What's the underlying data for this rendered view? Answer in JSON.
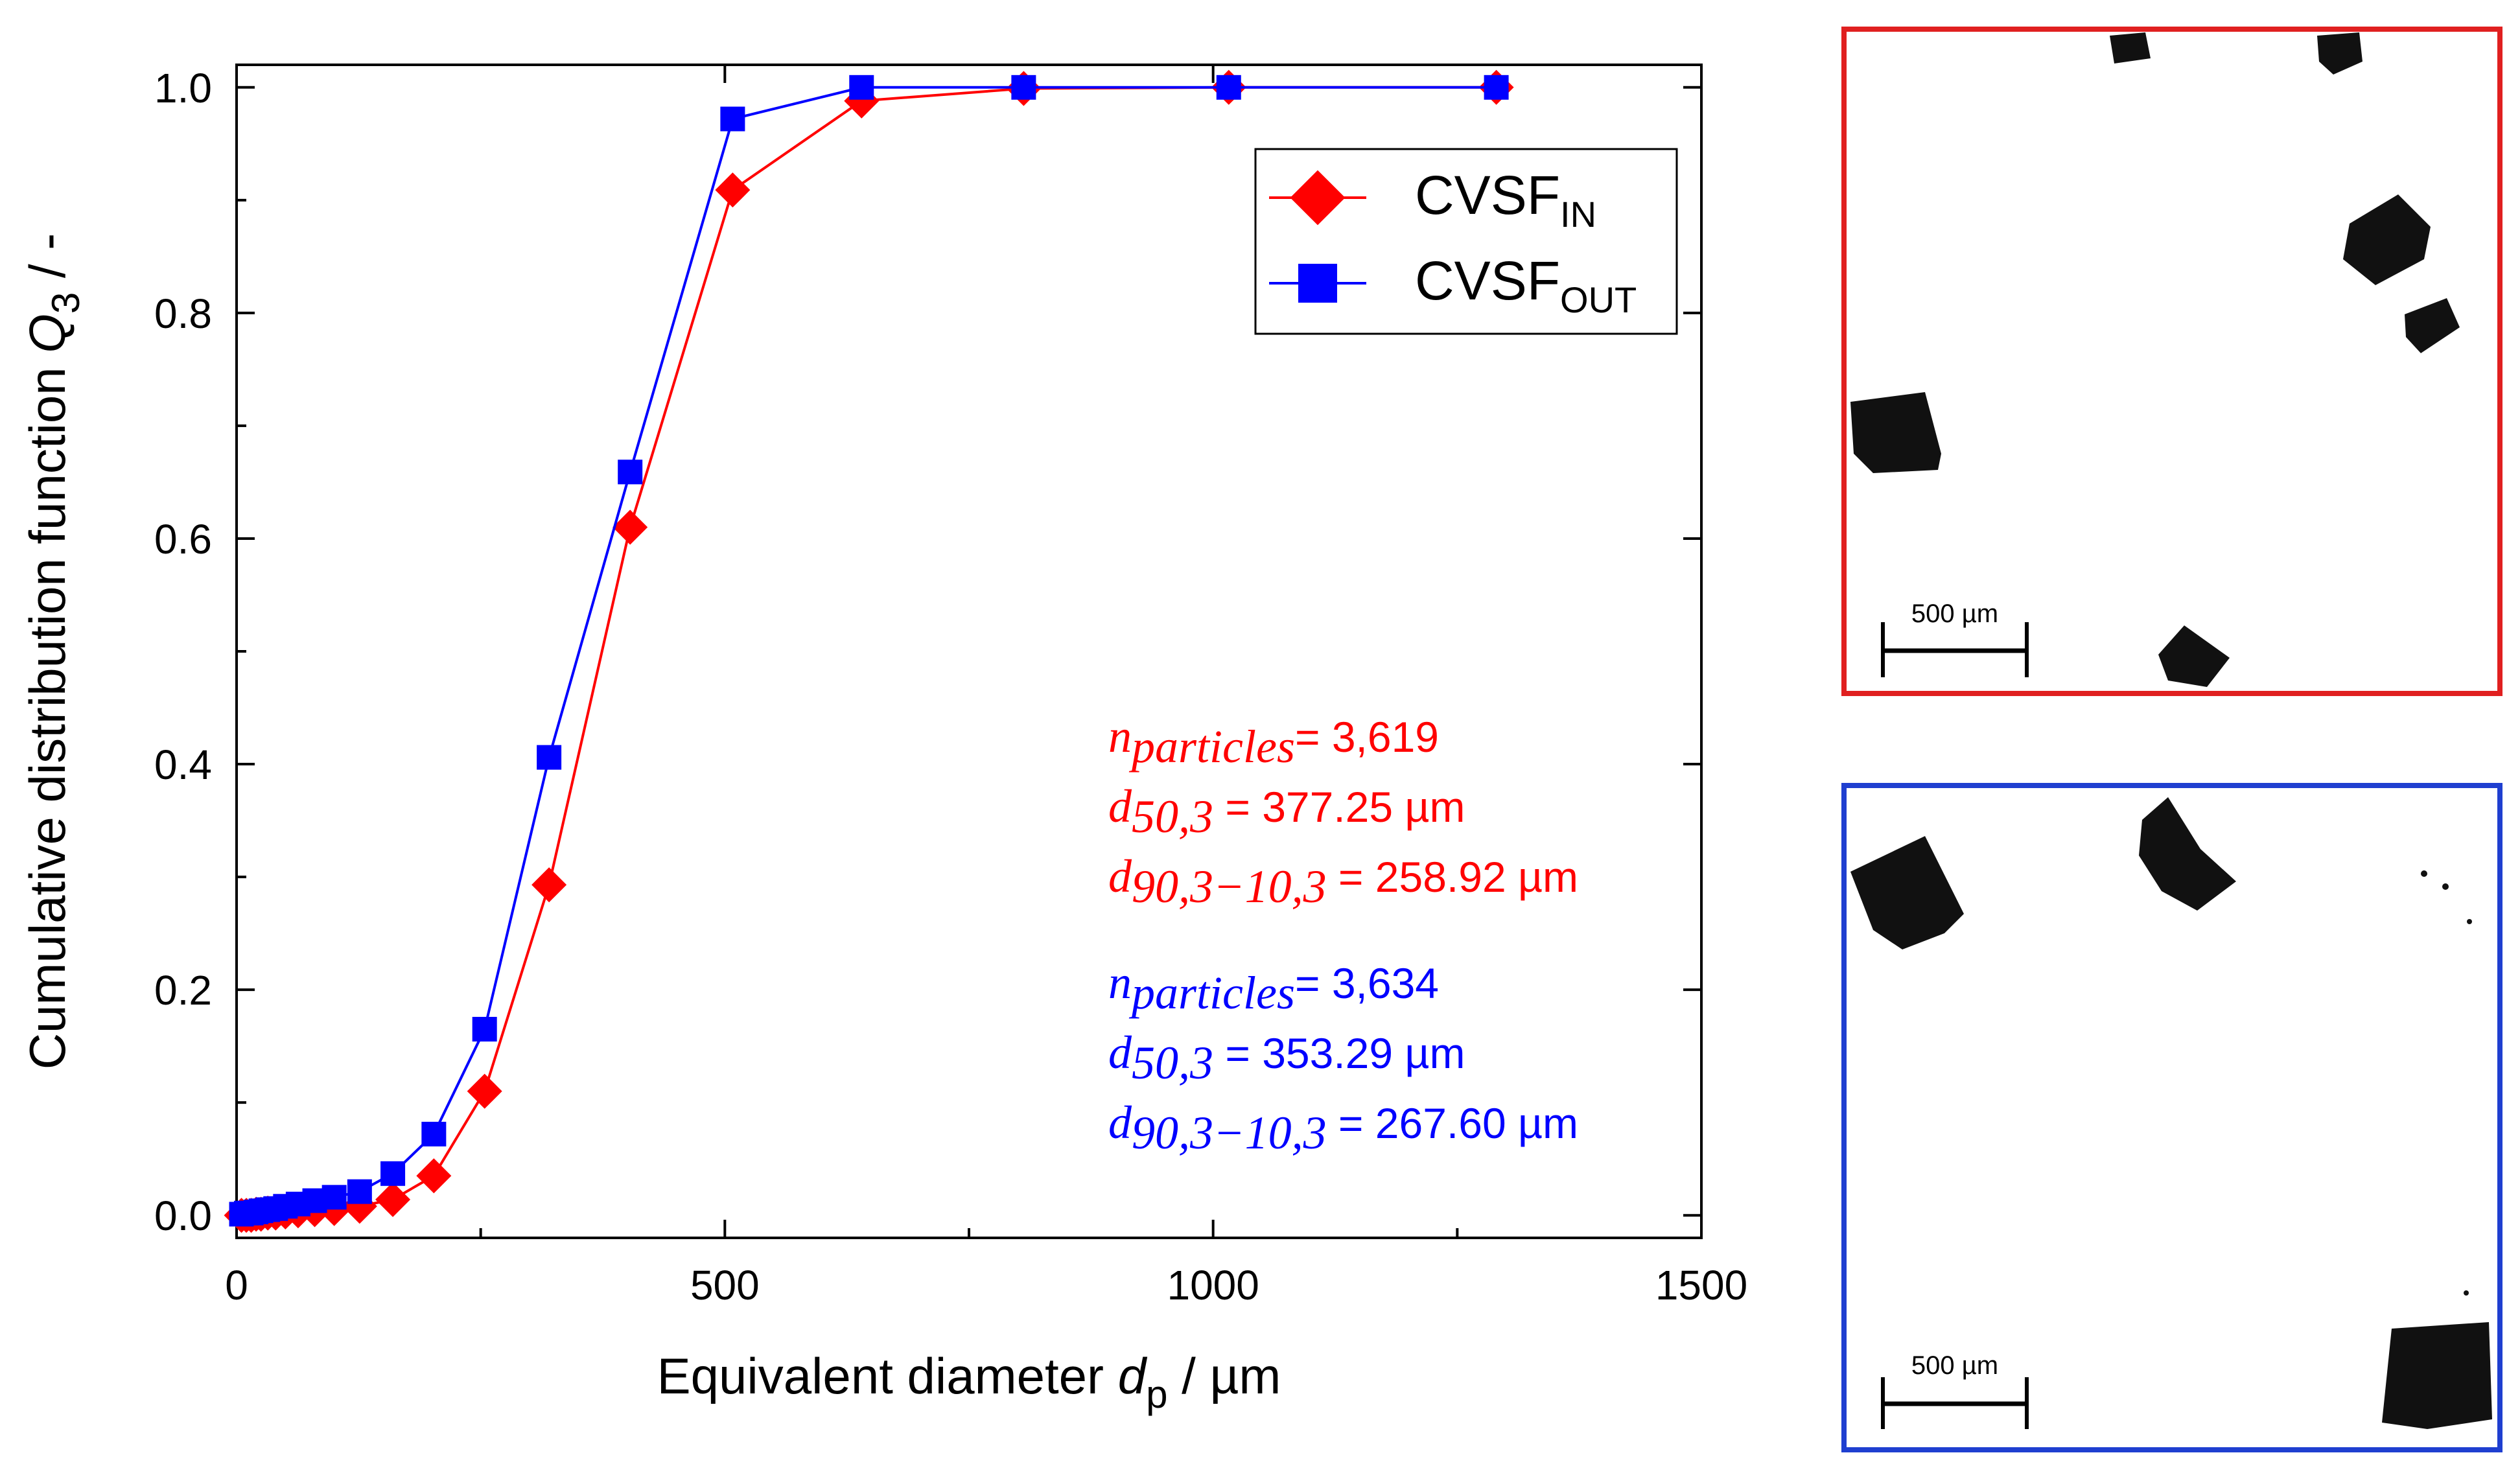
{
  "chart_data": {
    "type": "line",
    "xlabel": "Equivalent diameter ",
    "xlabel_var": "d",
    "xlabel_sub": "p",
    "xlabel_unit": " / µm",
    "ylabel": "Cumulative distribution function ",
    "ylabel_var": "Q",
    "ylabel_sub": "3",
    "ylabel_unit": " / -",
    "xlim": [
      0,
      1500
    ],
    "ylim": [
      -0.02,
      1.02
    ],
    "xticks": [
      0,
      500,
      1000,
      1500
    ],
    "xtick_labels": [
      "0",
      "500",
      "1000",
      "1500"
    ],
    "yticks": [
      0.0,
      0.2,
      0.4,
      0.6,
      0.8,
      1.0
    ],
    "ytick_labels": [
      "0.0",
      "0.2",
      "0.4",
      "0.6",
      "0.8",
      "1.0"
    ],
    "legend_position": "top-right",
    "series": [
      {
        "name": "CVSF",
        "name_sub": "IN",
        "color": "#ff0000",
        "marker": "diamond",
        "x": [
          5,
          10,
          15,
          20,
          25,
          32,
          40,
          50,
          63,
          80,
          100,
          126,
          160,
          202,
          254,
          320,
          403,
          508,
          640,
          806,
          1016,
          1290
        ],
        "y": [
          0.0,
          0.0,
          0.0,
          0.001,
          0.001,
          0.002,
          0.002,
          0.003,
          0.004,
          0.005,
          0.006,
          0.008,
          0.014,
          0.035,
          0.11,
          0.293,
          0.61,
          0.909,
          0.988,
          0.999,
          1.0,
          1.0
        ]
      },
      {
        "name": "CVSF",
        "name_sub": "OUT",
        "color": "#0000ff",
        "marker": "square",
        "x": [
          5,
          10,
          15,
          20,
          25,
          32,
          40,
          50,
          63,
          80,
          100,
          126,
          160,
          202,
          254,
          320,
          403,
          508,
          640,
          806,
          1016,
          1290
        ],
        "y": [
          0.001,
          0.002,
          0.002,
          0.003,
          0.004,
          0.005,
          0.006,
          0.008,
          0.01,
          0.013,
          0.016,
          0.021,
          0.037,
          0.072,
          0.165,
          0.406,
          0.659,
          0.972,
          1.0,
          1.0,
          1.0,
          1.0
        ]
      }
    ],
    "annotations": [
      {
        "color": "#ff0000",
        "lines": [
          {
            "var": "n",
            "sub": "particles",
            "text": "= 3,619"
          },
          {
            "var": "d",
            "sub": "50,3",
            "text": " = 377.25 µm"
          },
          {
            "var": "d",
            "sub": "90,3−10,3",
            "text": " = 258.92 µm"
          }
        ]
      },
      {
        "color": "#0000ff",
        "lines": [
          {
            "var": "n",
            "sub": "particles",
            "text": "= 3,634"
          },
          {
            "var": "d",
            "sub": "50,3",
            "text": " = 353.29 µm"
          },
          {
            "var": "d",
            "sub": "90,3−10,3",
            "text": " = 267.60 µm"
          }
        ]
      }
    ]
  },
  "micrographs": [
    {
      "name": "micrograph-in",
      "frame_color": "#e02020",
      "scale_bar_label": "500 µm"
    },
    {
      "name": "micrograph-out",
      "frame_color": "#1f3fd0",
      "scale_bar_label": "500 µm"
    }
  ]
}
